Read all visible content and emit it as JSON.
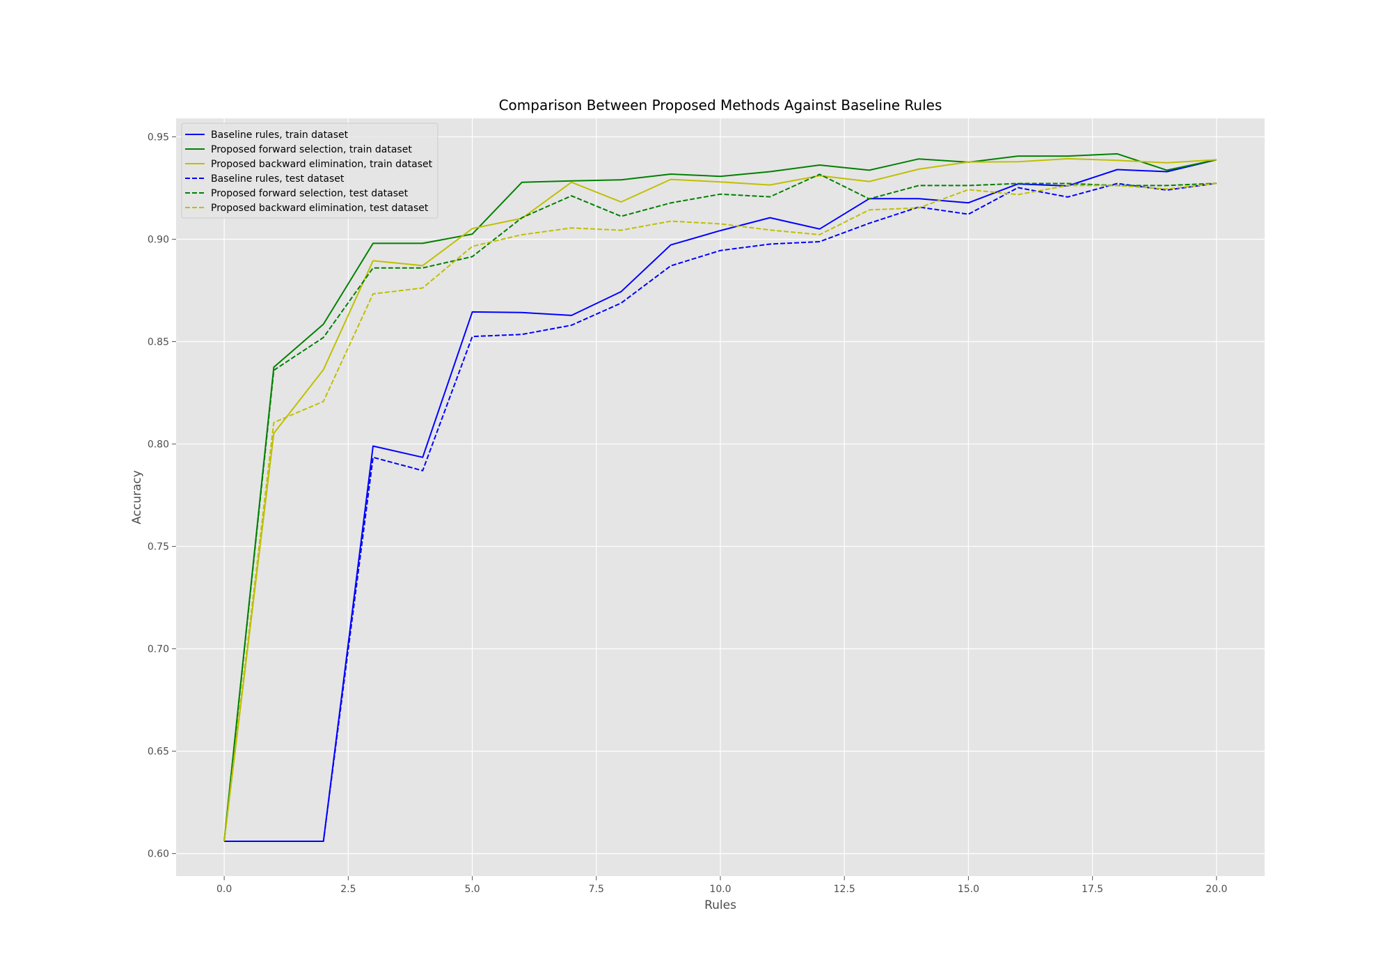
{
  "chart_data": {
    "type": "line",
    "title": "Comparison Between Proposed Methods Against Baseline Rules",
    "xlabel": "Rules",
    "ylabel": "Accuracy",
    "xlim": [
      -0.97,
      20.97
    ],
    "ylim": [
      0.589,
      0.959
    ],
    "xticks": [
      "0.0",
      "2.5",
      "5.0",
      "7.5",
      "10.0",
      "12.5",
      "15.0",
      "17.5",
      "20.0"
    ],
    "yticks": [
      "0.60",
      "0.65",
      "0.70",
      "0.75",
      "0.80",
      "0.85",
      "0.90",
      "0.95"
    ],
    "grid": true,
    "legend_position": "upper left",
    "x": [
      0,
      1,
      2,
      3,
      4,
      5,
      6,
      7,
      8,
      9,
      10,
      11,
      12,
      13,
      14,
      15,
      16,
      17,
      18,
      19,
      20
    ],
    "series": [
      {
        "name": "Baseline rules, train dataset",
        "color": "#0000ff",
        "dash": "solid",
        "values": [
          0.606,
          0.606,
          0.606,
          0.799,
          0.7935,
          0.8645,
          0.8642,
          0.8628,
          0.8744,
          0.8972,
          0.9042,
          0.9105,
          0.905,
          0.9198,
          0.9198,
          0.9178,
          0.927,
          0.926,
          0.934,
          0.933,
          0.9388
        ]
      },
      {
        "name": "Proposed forward selection, train dataset",
        "color": "#008000",
        "dash": "solid",
        "values": [
          0.606,
          0.8375,
          0.8585,
          0.898,
          0.898,
          0.9025,
          0.9278,
          0.9285,
          0.929,
          0.9318,
          0.9307,
          0.933,
          0.9362,
          0.9337,
          0.9392,
          0.9376,
          0.9406,
          0.9406,
          0.9417,
          0.9337,
          0.9388
        ]
      },
      {
        "name": "Proposed backward elimination, train dataset",
        "color": "#bfbf00",
        "dash": "solid",
        "values": [
          0.606,
          0.8052,
          0.8363,
          0.8895,
          0.8871,
          0.9052,
          0.9102,
          0.9278,
          0.9182,
          0.9292,
          0.928,
          0.9265,
          0.931,
          0.9282,
          0.9342,
          0.9377,
          0.9378,
          0.9393,
          0.9385,
          0.9373,
          0.9388
        ]
      },
      {
        "name": "Baseline rules, test dataset",
        "color": "#0000ff",
        "dash": "dashed",
        "values": [
          0.606,
          0.606,
          0.606,
          0.7935,
          0.787,
          0.8525,
          0.8535,
          0.858,
          0.8688,
          0.887,
          0.8945,
          0.8976,
          0.8988,
          0.9078,
          0.9157,
          0.9122,
          0.9252,
          0.9206,
          0.9272,
          0.924,
          0.9273
        ]
      },
      {
        "name": "Proposed forward selection, test dataset",
        "color": "#008000",
        "dash": "dashed",
        "values": [
          0.606,
          0.836,
          0.852,
          0.886,
          0.886,
          0.8915,
          0.9105,
          0.9212,
          0.9112,
          0.9177,
          0.922,
          0.9207,
          0.9317,
          0.9197,
          0.9262,
          0.9262,
          0.9272,
          0.9272,
          0.9262,
          0.9262,
          0.9273
        ]
      },
      {
        "name": "Proposed backward elimination, test dataset",
        "color": "#bfbf00",
        "dash": "dashed",
        "values": [
          0.606,
          0.8105,
          0.8208,
          0.8733,
          0.8762,
          0.8965,
          0.9022,
          0.9055,
          0.9044,
          0.9088,
          0.9075,
          0.9045,
          0.9022,
          0.9143,
          0.9153,
          0.9242,
          0.9218,
          0.9262,
          0.9262,
          0.9245,
          0.9273
        ]
      }
    ]
  }
}
